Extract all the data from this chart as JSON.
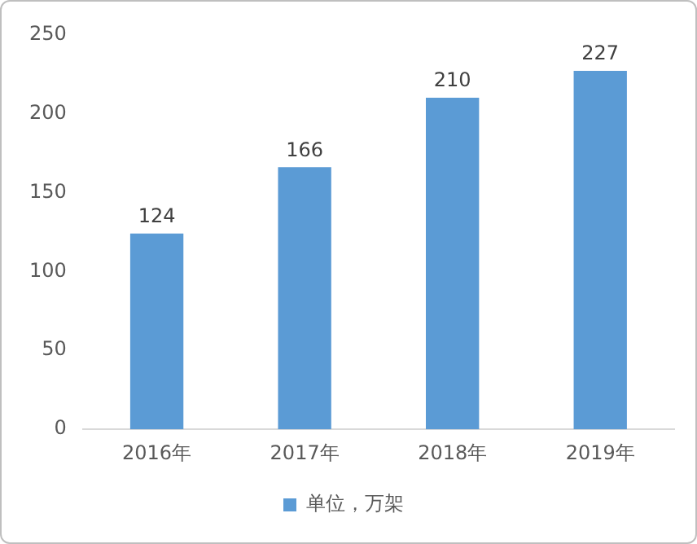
{
  "chart_data": {
    "type": "bar",
    "categories": [
      "2016年",
      "2017年",
      "2018年",
      "2019年"
    ],
    "series": [
      {
        "name": "单位，万架",
        "color": "#5b9bd5",
        "values": [
          124,
          166,
          210,
          227
        ]
      }
    ],
    "ylim": [
      0,
      250
    ],
    "yticks": [
      0,
      50,
      100,
      150,
      200,
      250
    ],
    "grid": false,
    "legend": "bottom",
    "data_labels": true
  }
}
